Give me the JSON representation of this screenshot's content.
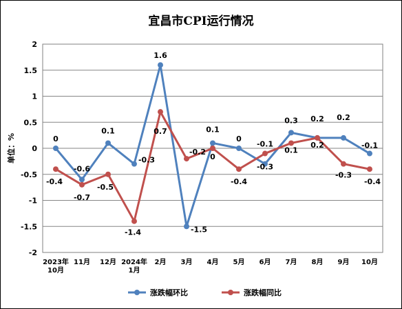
{
  "chart_data": {
    "type": "line",
    "title": "宜昌市CPI运行情况",
    "ylabel": "单位：%",
    "ylim": [
      -2,
      2
    ],
    "yticks": [
      "2",
      "1.5",
      "1",
      "0.5",
      "0",
      "-0.5",
      "-1",
      "-1.5",
      "-2"
    ],
    "categories": [
      [
        "2023年",
        "10月"
      ],
      [
        "11月"
      ],
      [
        "12月"
      ],
      [
        "2024年",
        "1月"
      ],
      [
        "2月"
      ],
      [
        "3月"
      ],
      [
        "4月"
      ],
      [
        "5月"
      ],
      [
        "6月"
      ],
      [
        "7月"
      ],
      [
        "8月"
      ],
      [
        "9月"
      ],
      [
        "10月"
      ]
    ],
    "grid": true,
    "legend": "bottom",
    "series": [
      {
        "name": "涨跌幅环比",
        "color": "#4f81bd",
        "values": [
          0,
          -0.6,
          0.1,
          -0.3,
          1.6,
          -1.5,
          0.1,
          0,
          -0.3,
          0.3,
          0.2,
          0.2,
          -0.1
        ],
        "labels": [
          "0",
          "-0.6",
          "0.1",
          "-0.3",
          "1.6",
          "-1.5",
          "0.1",
          "0",
          "-0.3",
          "0.3",
          "0.2",
          "0.2",
          "-0.1"
        ]
      },
      {
        "name": "涨跌幅同比",
        "color": "#c0504d",
        "values": [
          -0.4,
          -0.7,
          -0.5,
          -1.4,
          0.7,
          -0.2,
          0,
          -0.4,
          -0.1,
          0.1,
          0.2,
          -0.3,
          -0.4
        ],
        "labels": [
          "-0.4",
          "-0.7",
          "-0.5",
          "-1.4",
          "0.7",
          "-0.2",
          "0",
          "-0.4",
          "-0.1",
          "0.1",
          "0.2",
          "-0.3",
          "-0.4"
        ]
      }
    ]
  }
}
